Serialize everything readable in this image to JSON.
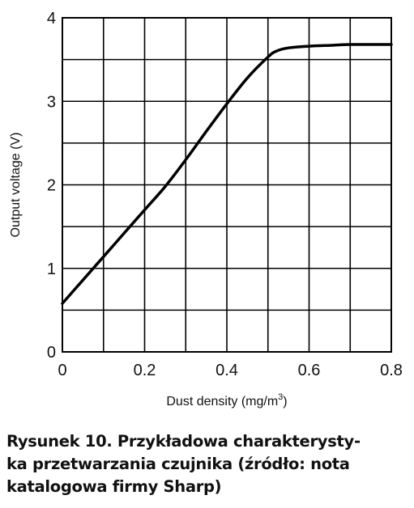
{
  "chart_data": {
    "type": "line",
    "xlabel": "Dust density (mg/m",
    "xlabel_sup": "3",
    "xlabel_end": ")",
    "ylabel": "Output voltage (V)",
    "xlim": [
      0,
      0.8
    ],
    "ylim": [
      0,
      4
    ],
    "x_ticks": [
      "0",
      "0.2",
      "0.4",
      "0.6",
      "0.8"
    ],
    "y_ticks": [
      "0",
      "1",
      "2",
      "3",
      "4"
    ],
    "grid": true,
    "series": [
      {
        "x": [
          0,
          0.05,
          0.1,
          0.15,
          0.2,
          0.25,
          0.3,
          0.35,
          0.4,
          0.45,
          0.5,
          0.52,
          0.55,
          0.6,
          0.65,
          0.7,
          0.8
        ],
        "y": [
          0.58,
          0.86,
          1.14,
          1.42,
          1.7,
          1.98,
          2.3,
          2.64,
          2.97,
          3.28,
          3.53,
          3.6,
          3.64,
          3.66,
          3.67,
          3.68,
          3.68
        ]
      }
    ]
  },
  "caption": {
    "line1": "Rysunek 10. Przykładowa charakterysty-",
    "line2": "ka przetwarzania czujnika (źródło: nota",
    "line3": "katalogowa firmy Sharp)"
  },
  "colors": {
    "line": "#000000",
    "grid": "#000000",
    "text": "#111111"
  }
}
